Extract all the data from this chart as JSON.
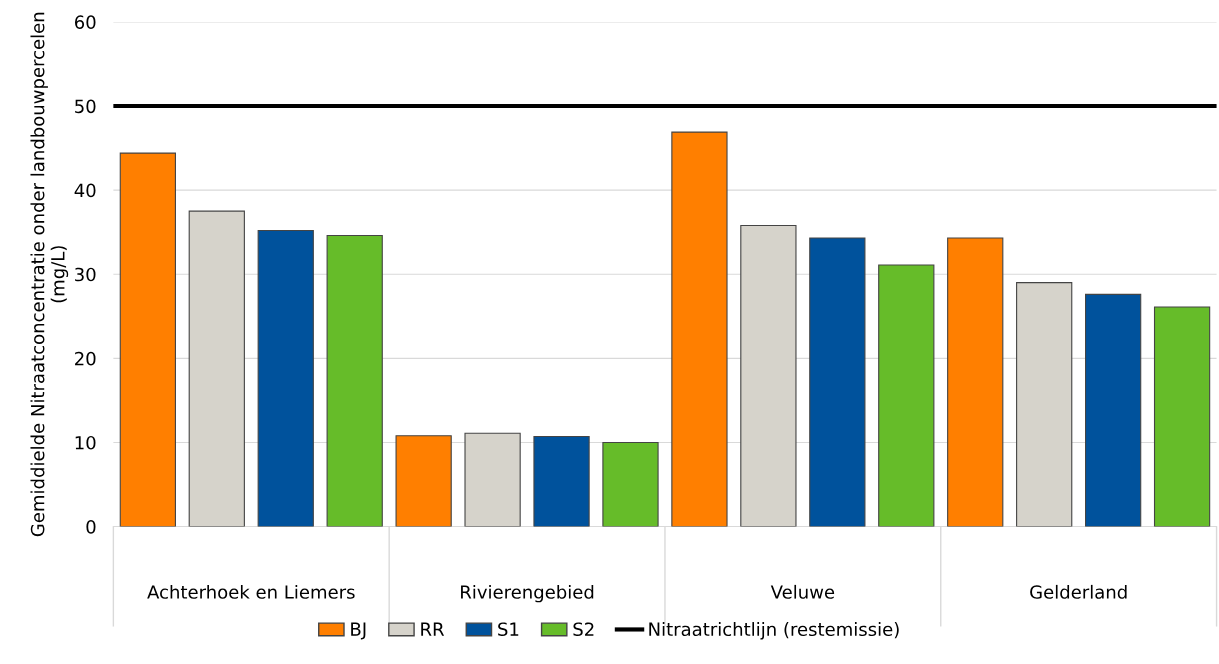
{
  "chart_data": {
    "type": "bar",
    "ylabel": "Gemiddielde Nitraatconcentratie onder landbouwpercelen (mg/L)",
    "categories": [
      "Achterhoek en Liemers",
      "Rivierengebied",
      "Veluwe",
      "Gelderland"
    ],
    "series": [
      {
        "name": "BJ",
        "color": "#ff7f00",
        "values": [
          44.4,
          10.8,
          46.9,
          34.3
        ]
      },
      {
        "name": "RR",
        "color": "#d6d3cb",
        "values": [
          37.5,
          11.1,
          35.8,
          29.0
        ]
      },
      {
        "name": "S1",
        "color": "#00529c",
        "values": [
          35.2,
          10.7,
          34.3,
          27.6
        ]
      },
      {
        "name": "S2",
        "color": "#66bc29",
        "values": [
          34.6,
          10.0,
          31.1,
          26.1
        ]
      }
    ],
    "ref_lines": [
      {
        "axis": "y",
        "value": 50,
        "label": "Nitraatrichtlijn (restemissie)",
        "color": "#000000"
      }
    ],
    "ylim": [
      0,
      60
    ],
    "yticks": [
      0,
      10,
      20,
      30,
      40,
      50,
      60
    ],
    "grid": "y",
    "legend": "bottom"
  }
}
